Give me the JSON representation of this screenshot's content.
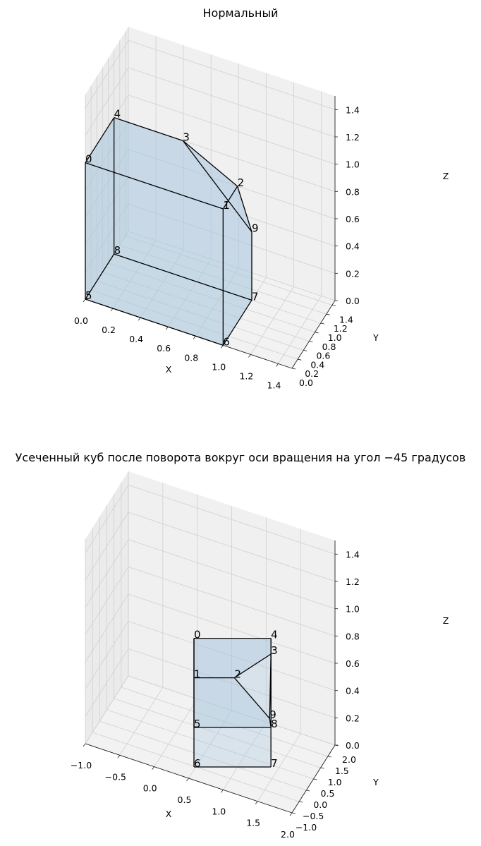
{
  "chart_data": [
    {
      "type": "3d-polyhedron",
      "title": "Нормальный",
      "xlabel": "X",
      "ylabel": "Y",
      "zlabel": "Z",
      "xlim": [
        0,
        1.5
      ],
      "ylim": [
        0,
        1.5
      ],
      "zlim": [
        0,
        1.5
      ],
      "xticks": [
        "0.0",
        "0.2",
        "0.4",
        "0.6",
        "0.8",
        "1.0",
        "1.2",
        "1.4"
      ],
      "yticks": [
        "0.0",
        "0.2",
        "0.4",
        "0.6",
        "0.8",
        "1.0",
        "1.2",
        "1.4"
      ],
      "zticks": [
        "0.0",
        "0.2",
        "0.4",
        "0.6",
        "0.8",
        "1.0",
        "1.2",
        "1.4"
      ],
      "grid": true,
      "face_color": "#a6c4dd",
      "vertices": [
        {
          "label": "0",
          "x": 0.0,
          "y": 0.0,
          "z": 1.0
        },
        {
          "label": "1",
          "x": 1.0,
          "y": 0.0,
          "z": 1.0
        },
        {
          "label": "2",
          "x": 1.0,
          "y": 0.5,
          "z": 1.0
        },
        {
          "label": "3",
          "x": 0.5,
          "y": 1.0,
          "z": 1.0
        },
        {
          "label": "4",
          "x": 0.0,
          "y": 1.0,
          "z": 1.0
        },
        {
          "label": "5",
          "x": 0.0,
          "y": 0.0,
          "z": 0.0
        },
        {
          "label": "6",
          "x": 1.0,
          "y": 0.0,
          "z": 0.0
        },
        {
          "label": "7",
          "x": 1.0,
          "y": 1.0,
          "z": 0.0
        },
        {
          "label": "8",
          "x": 0.0,
          "y": 1.0,
          "z": 0.0
        },
        {
          "label": "9",
          "x": 1.0,
          "y": 1.0,
          "z": 0.5
        }
      ]
    },
    {
      "type": "3d-polyhedron",
      "title": "Усеченный куб после поворота вокруг оси вращения на угол −45 градусов",
      "xlabel": "X",
      "ylabel": "Y",
      "zlabel": "Z",
      "xlim": [
        -1.0,
        2.0
      ],
      "ylim": [
        -1.0,
        2.0
      ],
      "zlim": [
        0,
        1.5
      ],
      "xticks": [
        "−1.0",
        "−0.5",
        "0.0",
        "0.5",
        "1.0",
        "1.5",
        "2.0"
      ],
      "yticks": [
        "−1.0",
        "−0.5",
        "0.0",
        "0.5",
        "1.0",
        "1.5",
        "2.0"
      ],
      "zticks": [
        "0.0",
        "0.2",
        "0.4",
        "0.6",
        "0.8",
        "1.0",
        "1.2",
        "1.4"
      ],
      "grid": true,
      "face_color": "#a6c4dd",
      "vertices": [
        {
          "label": "0",
          "x": 0.59,
          "y": 0.59,
          "z": 0.79
        },
        {
          "label": "1",
          "x": 0.59,
          "y": 0.59,
          "z": 0.44
        },
        {
          "label": "2",
          "x": 0.9,
          "y": 0.59,
          "z": 0.44
        },
        {
          "label": "3",
          "x": 1.18,
          "y": 0.59,
          "z": 0.65
        },
        {
          "label": "4",
          "x": 1.18,
          "y": 0.59,
          "z": 0.79
        },
        {
          "label": "5",
          "x": 0.59,
          "y": 0.59,
          "z": 0.0
        },
        {
          "label": "6",
          "x": 0.59,
          "y": 0.59,
          "z": -0.35
        },
        {
          "label": "7",
          "x": 1.18,
          "y": 0.59,
          "z": -0.35
        },
        {
          "label": "8",
          "x": 1.18,
          "y": 0.59,
          "z": 0.0
        },
        {
          "label": "9",
          "x": 1.17,
          "y": 0.59,
          "z": 0.08
        }
      ]
    }
  ]
}
